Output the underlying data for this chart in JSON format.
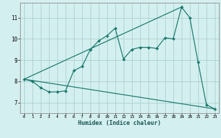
{
  "title": "",
  "xlabel": "Humidex (Indice chaleur)",
  "bg_color": "#d4efef",
  "grid_color": "#aacfcf",
  "line_color": "#1a7a6e",
  "xlim": [
    -0.5,
    23.5
  ],
  "ylim": [
    6.5,
    11.7
  ],
  "xticks": [
    0,
    1,
    2,
    3,
    4,
    5,
    6,
    7,
    8,
    9,
    10,
    11,
    12,
    13,
    14,
    15,
    16,
    17,
    18,
    19,
    20,
    21,
    22,
    23
  ],
  "yticks": [
    7,
    8,
    9,
    10,
    11
  ],
  "series1_x": [
    0,
    1,
    2,
    3,
    4,
    5,
    6,
    7,
    8,
    9,
    10,
    11,
    12,
    13,
    14,
    15,
    16,
    17,
    18,
    19,
    20,
    21,
    22,
    23
  ],
  "series1_y": [
    8.1,
    8.0,
    7.7,
    7.5,
    7.5,
    7.55,
    8.5,
    8.7,
    9.5,
    9.9,
    10.15,
    10.5,
    9.05,
    9.5,
    9.6,
    9.6,
    9.55,
    10.05,
    10.0,
    11.5,
    11.0,
    8.9,
    6.9,
    6.7
  ],
  "series2_x": [
    0,
    19
  ],
  "series2_y": [
    8.1,
    11.5
  ],
  "series3_x": [
    0,
    23
  ],
  "series3_y": [
    8.1,
    6.7
  ]
}
